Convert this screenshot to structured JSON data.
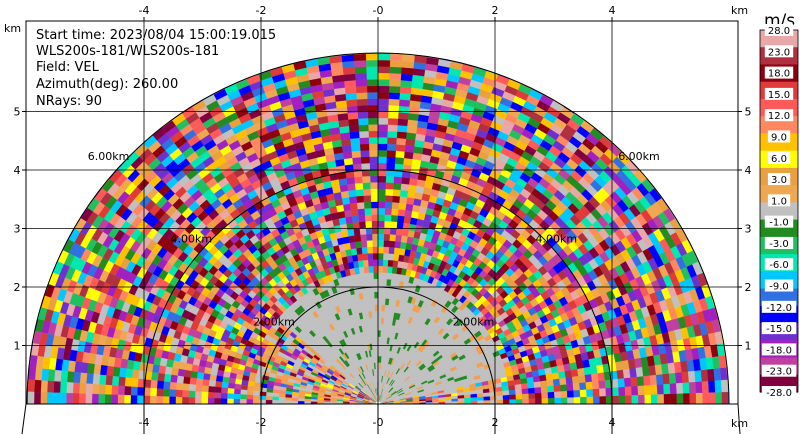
{
  "chart_data": {
    "type": "heatmap",
    "title": "",
    "info_lines": [
      "Start time: 2023/08/04 15:00:19.015",
      "WLS200s-181/WLS200s-181",
      "Field: VEL",
      "Azimuth(deg): 260.00",
      "NRays: 90"
    ],
    "x_unit_label": "km",
    "y_unit_label": "km",
    "xlim": [
      -6,
      6
    ],
    "ylim": [
      0,
      6
    ],
    "x_ticks": [
      -4,
      -2,
      0,
      2,
      4
    ],
    "x_tick_labels": [
      "-4",
      "-2",
      "-0",
      "2",
      "4"
    ],
    "y_ticks": [
      1,
      2,
      3,
      4,
      5
    ],
    "y_tick_labels": [
      "1",
      "2",
      "3",
      "4",
      "5"
    ],
    "grid": true,
    "range_rings": [
      {
        "range_km": 2,
        "label": "2.00km"
      },
      {
        "range_km": 4,
        "label": "4.00km"
      },
      {
        "range_km": 6,
        "label": "6.00km"
      }
    ],
    "max_range_km": 6,
    "colorbar": {
      "unit": "m/s",
      "tick_labels": [
        "28.0",
        "23.0",
        "18.0",
        "15.0",
        "12.0",
        "9.0",
        "6.0",
        "3.0",
        "1.0",
        "-1.0",
        "-3.0",
        "-6.0",
        "-9.0",
        "-12.0",
        "-15.0",
        "-18.0",
        "-23.0",
        "-28.0"
      ],
      "band_colors": [
        "#e8a8a8",
        "#b03040",
        "#8c0010",
        "#e03a3a",
        "#ff5a5a",
        "#ff8860",
        "#ffc000",
        "#ffff00",
        "#e8a040",
        "#f0a850",
        "#c0c0c0",
        "#228b22",
        "#20c060",
        "#00e8b0",
        "#00c8ff",
        "#3070e0",
        "#0000ff",
        "#7030d0",
        "#a020c0",
        "#c040a0",
        "#800040"
      ]
    }
  }
}
